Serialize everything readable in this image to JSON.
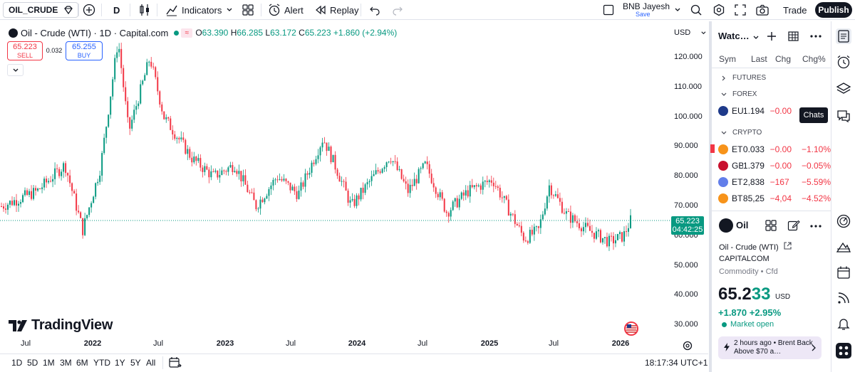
{
  "toolbar": {
    "symbol": "OIL_CRUDE",
    "interval": "D",
    "indicators_label": "Indicators",
    "alert_label": "Alert",
    "replay_label": "Replay",
    "user_name": "BNB Jayesh",
    "user_status": "Save",
    "trade_label": "Trade",
    "publish_label": "Publish"
  },
  "legend": {
    "title": "Oil - Crude (WTI) · 1D · Capital.com",
    "open_k": "O",
    "open_v": "63.390",
    "high_k": "H",
    "high_v": "66.285",
    "low_k": "L",
    "low_v": "63.172",
    "close_k": "C",
    "close_v": "65.223",
    "change": "+1.860 (+2.94%)"
  },
  "order": {
    "sell_price": "65.223",
    "sell_label": "SELL",
    "spread": "0.032",
    "buy_price": "65.255",
    "buy_label": "BUY"
  },
  "chart": {
    "currency": "USD",
    "price_tag": "65.223",
    "countdown": "04:42:25",
    "brand": "TradingView"
  },
  "chart_data": {
    "type": "candlestick",
    "title": "Oil - Crude (WTI) · 1D · Capital.com",
    "y_ticks": [
      "120.000",
      "110.000",
      "100.000",
      "90.000",
      "80.000",
      "70.000",
      "60.000",
      "50.000",
      "40.000",
      "30.000"
    ],
    "x_ticks": [
      {
        "label": "Jul",
        "bold": false
      },
      {
        "label": "2022",
        "bold": true
      },
      {
        "label": "Jul",
        "bold": false
      },
      {
        "label": "2023",
        "bold": true
      },
      {
        "label": "Jul",
        "bold": false
      },
      {
        "label": "2024",
        "bold": true
      },
      {
        "label": "Jul",
        "bold": false
      },
      {
        "label": "2025",
        "bold": true
      },
      {
        "label": "Jul",
        "bold": false
      },
      {
        "label": "2026",
        "bold": true
      }
    ],
    "ylim": [
      28,
      128
    ],
    "last_price": 65.223,
    "series": [
      {
        "t": 0.0,
        "v": 70
      },
      {
        "t": 0.05,
        "v": 75
      },
      {
        "t": 0.09,
        "v": 84
      },
      {
        "t": 0.115,
        "v": 62
      },
      {
        "t": 0.14,
        "v": 83
      },
      {
        "t": 0.165,
        "v": 126
      },
      {
        "t": 0.18,
        "v": 95
      },
      {
        "t": 0.21,
        "v": 120
      },
      {
        "t": 0.23,
        "v": 100
      },
      {
        "t": 0.27,
        "v": 86
      },
      {
        "t": 0.3,
        "v": 80
      },
      {
        "t": 0.33,
        "v": 84
      },
      {
        "t": 0.36,
        "v": 70
      },
      {
        "t": 0.39,
        "v": 80
      },
      {
        "t": 0.42,
        "v": 74
      },
      {
        "t": 0.455,
        "v": 93
      },
      {
        "t": 0.475,
        "v": 82
      },
      {
        "t": 0.495,
        "v": 70
      },
      {
        "t": 0.52,
        "v": 78
      },
      {
        "t": 0.55,
        "v": 87
      },
      {
        "t": 0.575,
        "v": 75
      },
      {
        "t": 0.6,
        "v": 84
      },
      {
        "t": 0.63,
        "v": 68
      },
      {
        "t": 0.66,
        "v": 75
      },
      {
        "t": 0.695,
        "v": 79
      },
      {
        "t": 0.715,
        "v": 70
      },
      {
        "t": 0.74,
        "v": 59
      },
      {
        "t": 0.76,
        "v": 62
      },
      {
        "t": 0.775,
        "v": 77
      },
      {
        "t": 0.8,
        "v": 67
      },
      {
        "t": 0.83,
        "v": 62
      },
      {
        "t": 0.86,
        "v": 58
      },
      {
        "t": 0.88,
        "v": 60
      },
      {
        "t": 0.89,
        "v": 65.2
      }
    ]
  },
  "ranges": [
    "1D",
    "5D",
    "1M",
    "3M",
    "6M",
    "YTD",
    "1Y",
    "5Y",
    "All"
  ],
  "clock": "18:17:34 UTC+1",
  "watchlist": {
    "title": "Watc…",
    "col_symbol": "Sym",
    "col_last": "Last",
    "col_chg": "Chg",
    "col_chgp": "Chg%",
    "futures_label": "FUTURES",
    "forex_label": "FOREX",
    "crypto_label": "CRYPTO",
    "chats_tooltip": "Chats",
    "forex_rows": [
      {
        "sym": "EU",
        "last": "1.194",
        "chg": "−0.00",
        "chgp": "",
        "color": "#1e3a8a"
      }
    ],
    "crypto_rows": [
      {
        "sym": "ET",
        "last": "0.033",
        "chg": "−0.00",
        "chgp": "−1.10%",
        "color": "#f7931a"
      },
      {
        "sym": "GB",
        "last": "1.379",
        "chg": "−0.00",
        "chgp": "−0.05%",
        "color": "#c8102e"
      },
      {
        "sym": "ET",
        "last": "2,838",
        "chg": "−167",
        "chgp": "−5.59%",
        "color": "#627eea"
      },
      {
        "sym": "BT",
        "last": "85,25",
        "chg": "−4,04",
        "chgp": "−4.52%",
        "color": "#f7931a"
      }
    ]
  },
  "details": {
    "short_name": "Oil",
    "full_name": "Oil - Crude (WTI)",
    "exchange": "CAPITALCOM",
    "category": "Commodity • Cfd",
    "price_head": "65.2",
    "price_tail": "33",
    "currency": "USD",
    "change": "+1.870  +2.95%",
    "market_status": "Market open",
    "news": "2 hours ago • Brent Back Above $70 a…"
  }
}
